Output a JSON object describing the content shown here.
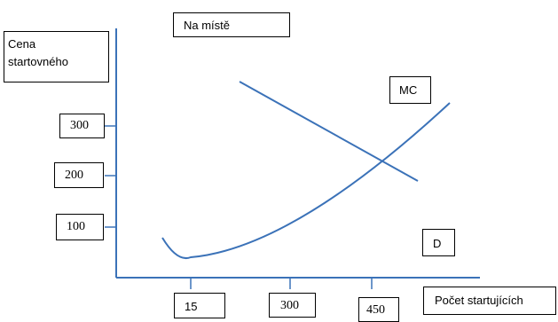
{
  "title_box": "Na místě",
  "y_axis_label": [
    "Cena",
    "startovného"
  ],
  "x_axis_label": "Počet startujících",
  "y_ticks": [
    "300",
    "200",
    "100"
  ],
  "x_ticks": [
    "15",
    "300",
    "450"
  ],
  "curve_labels": {
    "mc": "MC",
    "d": "D"
  },
  "colors": {
    "curve": "#3b72b8",
    "axis": "#3b72b8",
    "box_border": "#000000"
  }
}
